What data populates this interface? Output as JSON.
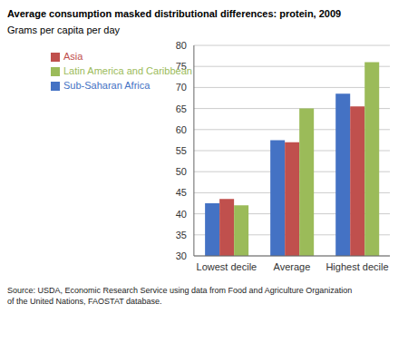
{
  "chart_data": {
    "type": "bar",
    "title": "Average consumption masked distributional differences: protein, 2009",
    "y_label": "Grams per capita per day",
    "annotations": [
      "Source: USDA, Economic Research Service using data from Food and Agriculture Organization\nof the United Nations, FAOSTAT database."
    ],
    "categories": [
      "Lowest decile",
      "Average",
      "Highest decile"
    ],
    "series": [
      {
        "name": "Sub-Saharan Africa",
        "color": "#4472C4",
        "values": [
          42.5,
          57.5,
          68.5
        ]
      },
      {
        "name": "Asia",
        "color": "#C0504D",
        "values": [
          43.5,
          57.0,
          65.5
        ]
      },
      {
        "name": "Latin America and Caribbean",
        "color": "#9BBB59",
        "values": [
          42.0,
          65.0,
          76.0
        ]
      }
    ],
    "ylim": [
      30,
      80
    ],
    "yticks": [
      30,
      35,
      40,
      45,
      50,
      55,
      60,
      65,
      70,
      75,
      80
    ],
    "grid": true,
    "legend": "upper left"
  }
}
